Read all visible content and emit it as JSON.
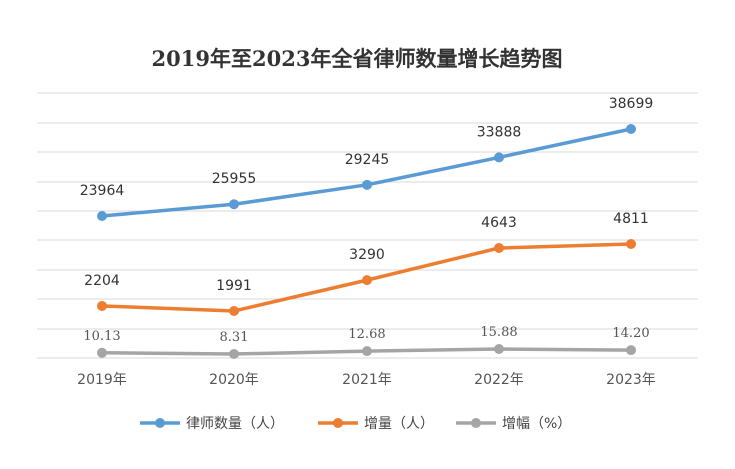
{
  "chart_data": {
    "type": "line",
    "title": "2019年至2023年全省律师数量增长趋势图",
    "categories": [
      "2019年",
      "2020年",
      "2021年",
      "2022年",
      "2023年"
    ],
    "grid": true,
    "legend_position": "bottom",
    "series": [
      {
        "name": "律师数量（人）",
        "values": [
          23964,
          25955,
          29245,
          33888,
          38699
        ],
        "labels": [
          "23964",
          "25955",
          "29245",
          "33888",
          "38699"
        ],
        "color": "#5b9bd5"
      },
      {
        "name": "增量（人）",
        "values": [
          2204,
          1991,
          3290,
          4643,
          4811
        ],
        "labels": [
          "2204",
          "1991",
          "3290",
          "4643",
          "4811"
        ],
        "color": "#ed7d31"
      },
      {
        "name": "增幅（%）",
        "values": [
          10.13,
          8.31,
          12.68,
          15.88,
          14.2
        ],
        "labels": [
          "10.13",
          "8.31",
          "12.68",
          "15.88",
          "14.20"
        ],
        "color": "#a5a5a5"
      }
    ]
  }
}
